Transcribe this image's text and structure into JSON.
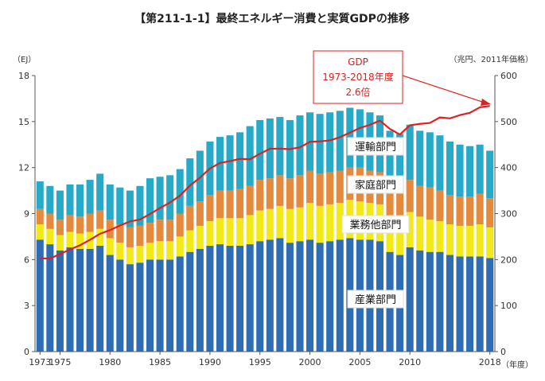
{
  "chart_data": {
    "type": "bar",
    "subtype": "stacked-bar-with-line",
    "title": "【第211-1-1】最終エネルギー消費と実質GDPの推移",
    "left_unit": "（EJ）",
    "right_unit": "（兆円、2011年価格）",
    "x_unit": "（年度）",
    "ylim": [
      0,
      18
    ],
    "y2lim": [
      0,
      600
    ],
    "yticks": [
      0,
      3,
      6,
      9,
      12,
      15,
      18
    ],
    "y2ticks": [
      0,
      100,
      200,
      300,
      400,
      500,
      600
    ],
    "categories": [
      1973,
      1974,
      1975,
      1976,
      1977,
      1978,
      1979,
      1980,
      1981,
      1982,
      1983,
      1984,
      1985,
      1986,
      1987,
      1988,
      1989,
      1990,
      1991,
      1992,
      1993,
      1994,
      1995,
      1996,
      1997,
      1998,
      1999,
      2000,
      2001,
      2002,
      2003,
      2004,
      2005,
      2006,
      2007,
      2008,
      2009,
      2010,
      2011,
      2012,
      2013,
      2014,
      2015,
      2016,
      2017,
      2018
    ],
    "xtick_labels": [
      {
        "year": 1973,
        "label": "1973"
      },
      {
        "year": 1975,
        "label": "1975"
      },
      {
        "year": 1980,
        "label": "1980"
      },
      {
        "year": 1985,
        "label": "1985"
      },
      {
        "year": 1990,
        "label": "1990"
      },
      {
        "year": 1995,
        "label": "1995"
      },
      {
        "year": 2000,
        "label": "2000"
      },
      {
        "year": 2005,
        "label": "2005"
      },
      {
        "year": 2010,
        "label": "2010"
      },
      {
        "year": 2018,
        "label": "2018"
      }
    ],
    "series": [
      {
        "name": "産業部門",
        "color": "#2e6db4",
        "values": [
          7.3,
          7.0,
          6.6,
          6.8,
          6.7,
          6.7,
          6.9,
          6.3,
          6.0,
          5.7,
          5.8,
          6.0,
          6.0,
          6.0,
          6.2,
          6.5,
          6.7,
          6.9,
          7.0,
          6.9,
          6.9,
          7.0,
          7.2,
          7.3,
          7.4,
          7.1,
          7.2,
          7.3,
          7.1,
          7.2,
          7.3,
          7.4,
          7.3,
          7.3,
          7.2,
          6.5,
          6.3,
          6.8,
          6.6,
          6.5,
          6.5,
          6.3,
          6.2,
          6.2,
          6.2,
          6.1
        ]
      },
      {
        "name": "業務他部門",
        "color": "#f2ea18",
        "values": [
          1.0,
          1.0,
          1.0,
          1.0,
          1.0,
          1.1,
          1.1,
          1.1,
          1.1,
          1.1,
          1.1,
          1.1,
          1.2,
          1.2,
          1.3,
          1.4,
          1.5,
          1.6,
          1.7,
          1.8,
          1.8,
          1.9,
          2.0,
          2.0,
          2.1,
          2.2,
          2.2,
          2.4,
          2.4,
          2.4,
          2.4,
          2.5,
          2.5,
          2.4,
          2.4,
          2.3,
          2.3,
          2.3,
          2.2,
          2.1,
          2.0,
          2.0,
          2.0,
          2.0,
          2.1,
          2.0
        ]
      },
      {
        "name": "家庭部門",
        "color": "#e58a3c",
        "values": [
          1.0,
          1.0,
          1.0,
          1.1,
          1.1,
          1.2,
          1.2,
          1.2,
          1.2,
          1.3,
          1.3,
          1.3,
          1.4,
          1.4,
          1.5,
          1.6,
          1.6,
          1.7,
          1.8,
          1.8,
          1.9,
          1.9,
          2.0,
          2.0,
          2.0,
          2.0,
          2.1,
          2.1,
          2.1,
          2.1,
          2.1,
          2.1,
          2.2,
          2.1,
          2.1,
          2.0,
          2.0,
          2.1,
          2.0,
          2.1,
          2.0,
          1.9,
          1.9,
          1.9,
          2.0,
          1.9
        ]
      },
      {
        "name": "運輸部門",
        "color": "#27a9c8",
        "values": [
          1.8,
          1.8,
          1.9,
          2.0,
          2.1,
          2.2,
          2.4,
          2.3,
          2.4,
          2.4,
          2.6,
          2.9,
          2.8,
          2.9,
          2.9,
          3.1,
          3.3,
          3.5,
          3.5,
          3.6,
          3.7,
          3.9,
          3.9,
          3.9,
          3.8,
          3.8,
          3.9,
          3.8,
          3.9,
          3.9,
          3.9,
          3.9,
          3.8,
          3.8,
          3.7,
          3.6,
          3.6,
          3.6,
          3.6,
          3.6,
          3.6,
          3.5,
          3.4,
          3.3,
          3.2,
          3.1
        ]
      }
    ],
    "line_series": {
      "name": "GDP",
      "color": "#e0201e",
      "axis": "right",
      "values": [
        203,
        202,
        212,
        222,
        231,
        243,
        256,
        264,
        274,
        283,
        287,
        299,
        312,
        324,
        339,
        361,
        378,
        398,
        410,
        414,
        419,
        418,
        430,
        441,
        441,
        440,
        444,
        456,
        457,
        459,
        466,
        476,
        486,
        493,
        502,
        484,
        472,
        492,
        495,
        497,
        509,
        507,
        514,
        519,
        531,
        534
      ]
    },
    "segment_labels": [
      "運輸部門",
      "家庭部門",
      "業務他部門",
      "産業部門"
    ],
    "annotation": {
      "lines": [
        "GDP",
        "1973-2018年度",
        "2.6倍"
      ],
      "color": "#e0201e"
    },
    "grid": false
  }
}
